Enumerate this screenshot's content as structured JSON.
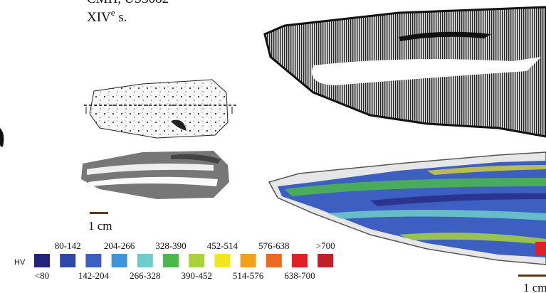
{
  "header": {
    "site": "CMH, US3082",
    "century": "XIV",
    "century_sup": "e",
    "century_suffix": " s."
  },
  "scale_left": "1 cm",
  "scale_right": "1 cm",
  "legend": {
    "title": "HV",
    "classes": [
      {
        "label": "<80",
        "color": "#23237a"
      },
      {
        "label": "80-142",
        "color": "#2f4aa6"
      },
      {
        "label": "142-204",
        "color": "#3d5fc2"
      },
      {
        "label": "204-266",
        "color": "#3f95d9"
      },
      {
        "label": "266-328",
        "color": "#6ecccb"
      },
      {
        "label": "328-390",
        "color": "#4db84a"
      },
      {
        "label": "390-452",
        "color": "#a9d23b"
      },
      {
        "label": "452-514",
        "color": "#f2e61f"
      },
      {
        "label": "514-576",
        "color": "#f3a01c"
      },
      {
        "label": "576-638",
        "color": "#ea6a1f"
      },
      {
        "label": "638-700",
        "color": "#e01f27"
      },
      {
        "label": ">700",
        "color": "#c1202b"
      }
    ]
  }
}
